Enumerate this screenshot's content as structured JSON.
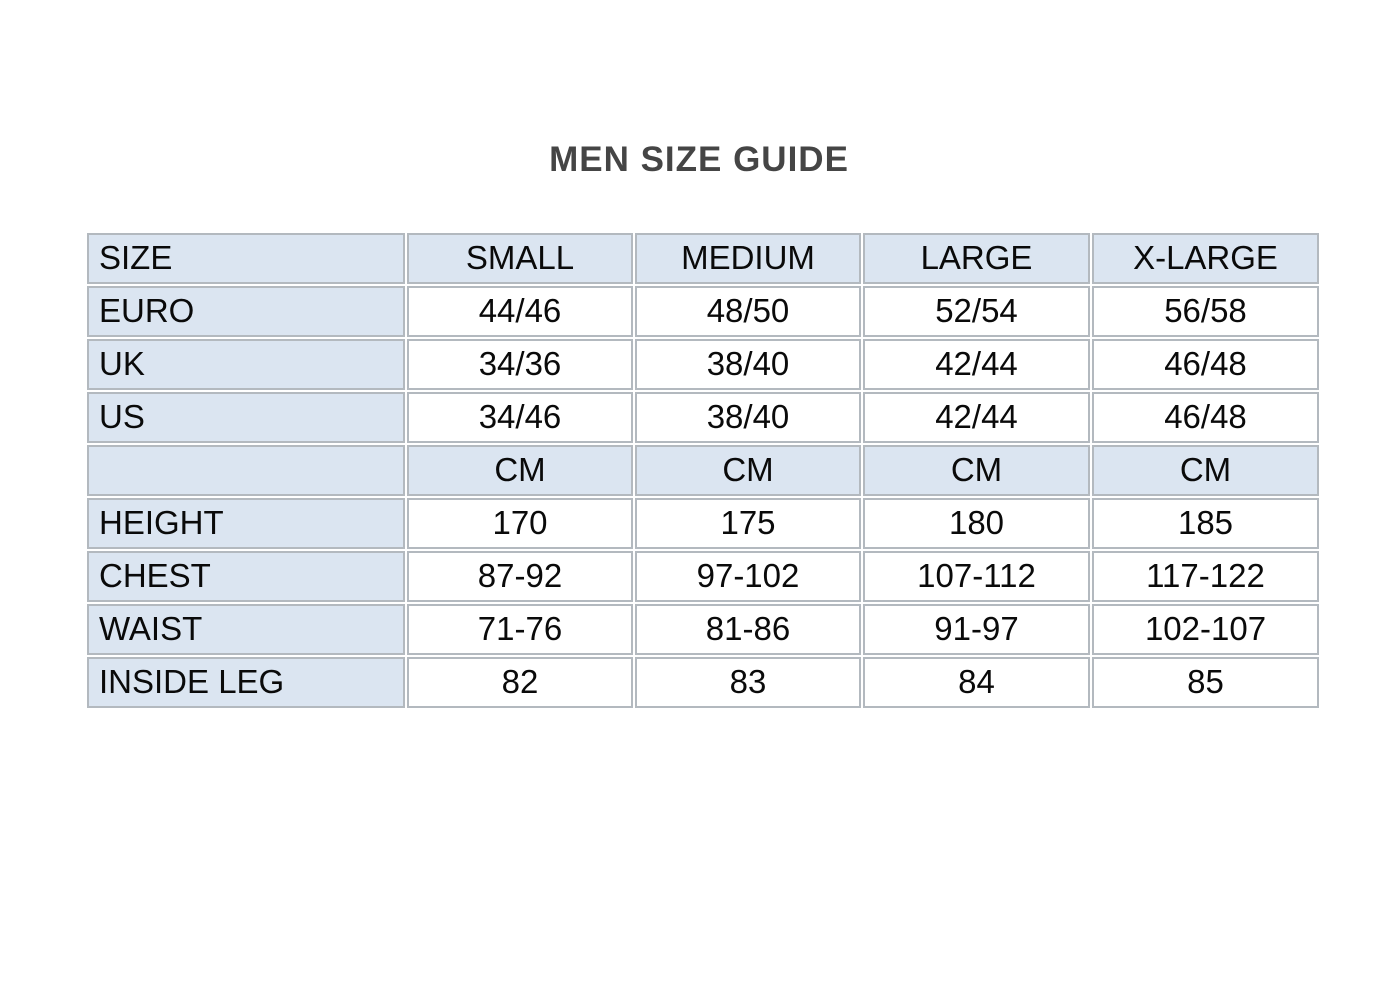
{
  "title": "MEN SIZE GUIDE",
  "colors": {
    "header_bg": "#dbe5f1",
    "border": "#b3b9bf",
    "title_color": "#454545",
    "text": "#0a0a0a",
    "page_bg": "#ffffff"
  },
  "table": {
    "columns": [
      "SIZE",
      "SMALL",
      "MEDIUM",
      "LARGE",
      "X-LARGE"
    ],
    "rows": [
      {
        "label": "EURO",
        "values": [
          "44/46",
          "48/50",
          "52/54",
          "56/58"
        ],
        "shaded": false
      },
      {
        "label": "UK",
        "values": [
          "34/36",
          "38/40",
          "42/44",
          "46/48"
        ],
        "shaded": false
      },
      {
        "label": "US",
        "values": [
          "34/46",
          "38/40",
          "42/44",
          "46/48"
        ],
        "shaded": false
      },
      {
        "label": "",
        "values": [
          "CM",
          "CM",
          "CM",
          "CM"
        ],
        "shaded": true
      },
      {
        "label": "HEIGHT",
        "values": [
          "170",
          "175",
          "180",
          "185"
        ],
        "shaded": false
      },
      {
        "label": "CHEST",
        "values": [
          "87-92",
          "97-102",
          "107-112",
          "117-122"
        ],
        "shaded": false
      },
      {
        "label": "WAIST",
        "values": [
          "71-76",
          "81-86",
          "91-97",
          "102-107"
        ],
        "shaded": false
      },
      {
        "label": "INSIDE LEG",
        "values": [
          "82",
          "83",
          "84",
          "85"
        ],
        "shaded": false
      }
    ]
  }
}
